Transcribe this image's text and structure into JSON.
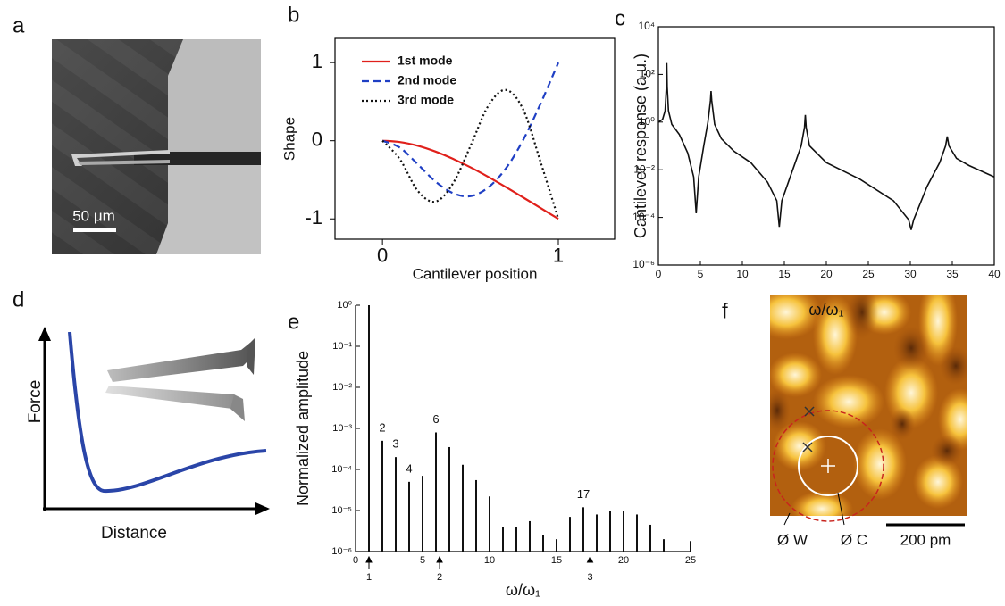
{
  "panel_labels": [
    "a",
    "b",
    "c",
    "d",
    "e",
    "f"
  ],
  "panel_a": {
    "scale_bar": "50 μm"
  },
  "panel_d": {
    "y_label": "Force",
    "x_label": "Distance"
  },
  "panel_f": {
    "labels": [
      "Ø W",
      "Ø C"
    ],
    "scale_bar": "200 pm"
  },
  "chart_data": [
    {
      "type": "line",
      "y_label": "Shape",
      "x_label": "Cantilever position",
      "xlim": [
        -0.27,
        1.32
      ],
      "ylim": [
        -1.26,
        1.31
      ],
      "xticks": [
        0,
        1
      ],
      "yticks": [
        -1,
        0,
        1
      ],
      "legend": "upper left",
      "x": [
        0,
        0.1,
        0.2,
        0.3,
        0.4,
        0.5,
        0.6,
        0.7,
        0.8,
        0.9,
        1
      ],
      "series": [
        {
          "name": "1st mode",
          "color": "#e0201b",
          "dash": "solid",
          "values": [
            0,
            -0.017,
            -0.064,
            -0.137,
            -0.231,
            -0.34,
            -0.461,
            -0.591,
            -0.726,
            -0.863,
            -1
          ]
        },
        {
          "name": "2nd mode",
          "color": "#1f3fc4",
          "dash": "dashed",
          "values": [
            0,
            -0.09,
            -0.3,
            -0.52,
            -0.67,
            -0.71,
            -0.6,
            -0.36,
            0.01,
            0.48,
            1
          ]
        },
        {
          "name": "3rd mode",
          "color": "#111111",
          "dash": "dotted",
          "values": [
            0,
            -0.24,
            -0.64,
            -0.78,
            -0.55,
            -0.07,
            0.44,
            0.65,
            0.4,
            -0.28,
            -1
          ]
        }
      ]
    },
    {
      "type": "line",
      "log_y": true,
      "y_label": "Cantilever response (a.u.)",
      "x_label": "ω/ω₁",
      "xlim": [
        0,
        40
      ],
      "ylim": [
        1e-06,
        10000.0
      ],
      "xticks": [
        0,
        5,
        10,
        15,
        20,
        25,
        30,
        35,
        40
      ],
      "yticks": [
        {
          "value": 1e-06,
          "label": "10⁻⁶"
        },
        {
          "value": 0.0001,
          "label": "10⁻⁴"
        },
        {
          "value": 0.01,
          "label": "10⁻²"
        },
        {
          "value": 1,
          "label": "10⁰"
        },
        {
          "value": 100,
          "label": "10²"
        },
        {
          "value": 10000,
          "label": "10⁴"
        }
      ],
      "color": "#111111",
      "x": [
        0,
        0.5,
        0.8,
        0.95,
        1,
        1.05,
        1.2,
        1.6,
        2.5,
        3.5,
        4.2,
        4.5,
        4.8,
        5.4,
        5.9,
        6.2,
        6.27,
        6.35,
        6.7,
        7.5,
        9,
        11,
        13,
        14.1,
        14.4,
        14.7,
        16,
        17,
        17.4,
        17.5,
        17.6,
        18,
        20,
        24,
        28,
        29.8,
        30.1,
        30.4,
        32,
        33.5,
        34.2,
        34.4,
        34.6,
        35.5,
        37,
        40
      ],
      "values": [
        1,
        1.3,
        3,
        30,
        300,
        30,
        3,
        0.8,
        0.3,
        0.05,
        0.005,
        0.00015,
        0.005,
        0.1,
        1,
        8,
        20,
        8,
        0.8,
        0.2,
        0.06,
        0.02,
        0.003,
        0.0005,
        4e-05,
        0.0005,
        0.01,
        0.1,
        0.6,
        2,
        0.6,
        0.1,
        0.02,
        0.004,
        0.0005,
        8e-05,
        3e-05,
        8e-05,
        0.002,
        0.02,
        0.1,
        0.25,
        0.1,
        0.03,
        0.015,
        0.005
      ]
    },
    {
      "type": "bar",
      "log_y": true,
      "y_label": "Normalized amplitude",
      "x_label": "ω/ω₁",
      "xlim": [
        0,
        25
      ],
      "ylim": [
        1e-06,
        1
      ],
      "xticks": [
        0,
        5,
        10,
        15,
        20,
        25
      ],
      "yticks": [
        {
          "value": 1e-06,
          "label": "10⁻⁶"
        },
        {
          "value": 1e-05,
          "label": "10⁻⁵"
        },
        {
          "value": 0.0001,
          "label": "10⁻⁴"
        },
        {
          "value": 0.001,
          "label": "10⁻³"
        },
        {
          "value": 0.01,
          "label": "10⁻²"
        },
        {
          "value": 0.1,
          "label": "10⁻¹"
        },
        {
          "value": 1,
          "label": "10⁰"
        }
      ],
      "color": "#111111",
      "x": [
        1,
        2,
        3,
        4,
        5,
        6,
        7,
        8,
        9,
        10,
        11,
        12,
        13,
        14,
        15,
        16,
        17,
        18,
        19,
        20,
        21,
        22,
        23,
        25
      ],
      "values": [
        1,
        0.0005,
        0.0002,
        5e-05,
        7e-05,
        0.0008,
        0.00035,
        0.00013,
        5.5e-05,
        2.2e-05,
        4e-06,
        4e-06,
        5.5e-06,
        2.5e-06,
        2e-06,
        7e-06,
        1.2e-05,
        8e-06,
        1e-05,
        1e-05,
        8e-06,
        4.5e-06,
        2e-06,
        1.8e-06
      ],
      "bar_labels": [
        {
          "text": "2",
          "x": 2
        },
        {
          "text": "3",
          "x": 3
        },
        {
          "text": "4",
          "x": 4
        },
        {
          "text": "6",
          "x": 6
        },
        {
          "text": "17",
          "x": 17
        }
      ],
      "mode_markers": [
        {
          "text": "1",
          "x": 1
        },
        {
          "text": "2",
          "x": 6.27
        },
        {
          "text": "3",
          "x": 17.5
        }
      ]
    }
  ]
}
